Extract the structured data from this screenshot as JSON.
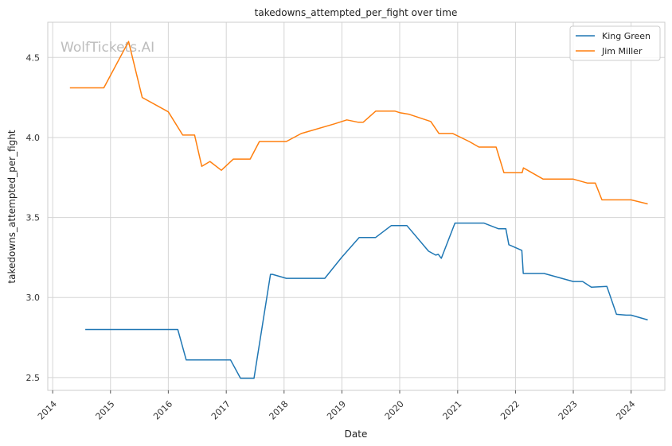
{
  "chart_data": {
    "type": "line",
    "title": "takedowns_attempted_per_fight over time",
    "xlabel": "Date",
    "ylabel": "takedowns_attempted_per_fight",
    "watermark": "WolfTickets.AI",
    "grid": true,
    "legend_position": "top-right",
    "xlim": [
      "2013-12-01",
      "2024-08-01"
    ],
    "ylim": [
      2.42,
      4.72
    ],
    "x_ticks": [
      "2014",
      "2015",
      "2016",
      "2017",
      "2018",
      "2019",
      "2020",
      "2021",
      "2022",
      "2023",
      "2024"
    ],
    "y_ticks": [
      "2.5",
      "3.0",
      "3.5",
      "4.0",
      "4.5"
    ],
    "series": [
      {
        "name": "King Green",
        "color": "#1f77b4",
        "points": [
          [
            "2014-07-26",
            2.8
          ],
          [
            "2016-03-01",
            2.8
          ],
          [
            "2016-04-23",
            2.61
          ],
          [
            "2017-01-28",
            2.61
          ],
          [
            "2017-04-01",
            2.495
          ],
          [
            "2017-06-25",
            2.495
          ],
          [
            "2017-10-07",
            3.145
          ],
          [
            "2017-10-20",
            3.145
          ],
          [
            "2018-01-15",
            3.12
          ],
          [
            "2018-09-15",
            3.12
          ],
          [
            "2018-12-30",
            3.25
          ],
          [
            "2019-04-20",
            3.375
          ],
          [
            "2019-08-01",
            3.375
          ],
          [
            "2019-11-09",
            3.45
          ],
          [
            "2020-02-15",
            3.45
          ],
          [
            "2020-07-01",
            3.29
          ],
          [
            "2020-08-15",
            3.265
          ],
          [
            "2020-09-01",
            3.27
          ],
          [
            "2020-09-20",
            3.245
          ],
          [
            "2020-12-15",
            3.465
          ],
          [
            "2021-06-15",
            3.465
          ],
          [
            "2021-09-15",
            3.43
          ],
          [
            "2021-11-01",
            3.43
          ],
          [
            "2021-11-20",
            3.33
          ],
          [
            "2022-02-10",
            3.295
          ],
          [
            "2022-02-19",
            3.15
          ],
          [
            "2022-07-01",
            3.15
          ],
          [
            "2023-01-01",
            3.1
          ],
          [
            "2023-03-01",
            3.1
          ],
          [
            "2023-04-25",
            3.065
          ],
          [
            "2023-08-01",
            3.07
          ],
          [
            "2023-10-01",
            2.895
          ],
          [
            "2023-12-01",
            2.89
          ],
          [
            "2024-01-01",
            2.89
          ],
          [
            "2024-04-15",
            2.86
          ]
        ]
      },
      {
        "name": "Jim Miller",
        "color": "#ff7f0e",
        "points": [
          [
            "2014-04-20",
            4.31
          ],
          [
            "2014-11-20",
            4.31
          ],
          [
            "2015-04-25",
            4.6
          ],
          [
            "2015-07-20",
            4.25
          ],
          [
            "2016-01-01",
            4.16
          ],
          [
            "2016-04-01",
            4.015
          ],
          [
            "2016-06-15",
            4.015
          ],
          [
            "2016-07-30",
            3.82
          ],
          [
            "2016-09-20",
            3.85
          ],
          [
            "2016-12-01",
            3.795
          ],
          [
            "2017-02-15",
            3.865
          ],
          [
            "2017-06-01",
            3.865
          ],
          [
            "2017-07-29",
            3.975
          ],
          [
            "2017-11-01",
            3.975
          ],
          [
            "2018-01-15",
            3.975
          ],
          [
            "2018-04-20",
            4.025
          ],
          [
            "2018-11-15",
            4.085
          ],
          [
            "2019-02-01",
            4.11
          ],
          [
            "2019-04-15",
            4.095
          ],
          [
            "2019-05-15",
            4.095
          ],
          [
            "2019-08-03",
            4.165
          ],
          [
            "2019-12-01",
            4.165
          ],
          [
            "2020-01-01",
            4.155
          ],
          [
            "2020-03-01",
            4.145
          ],
          [
            "2020-07-15",
            4.1
          ],
          [
            "2020-09-05",
            4.025
          ],
          [
            "2020-12-01",
            4.025
          ],
          [
            "2021-03-15",
            3.975
          ],
          [
            "2021-05-15",
            3.94
          ],
          [
            "2021-09-01",
            3.94
          ],
          [
            "2021-10-20",
            3.78
          ],
          [
            "2022-01-01",
            3.78
          ],
          [
            "2022-02-12",
            3.78
          ],
          [
            "2022-02-20",
            3.81
          ],
          [
            "2022-06-25",
            3.74
          ],
          [
            "2022-08-01",
            3.74
          ],
          [
            "2023-01-01",
            3.74
          ],
          [
            "2023-04-01",
            3.715
          ],
          [
            "2023-05-20",
            3.715
          ],
          [
            "2023-07-01",
            3.61
          ],
          [
            "2023-11-01",
            3.61
          ],
          [
            "2024-01-01",
            3.61
          ],
          [
            "2024-04-15",
            3.585
          ]
        ]
      }
    ]
  }
}
